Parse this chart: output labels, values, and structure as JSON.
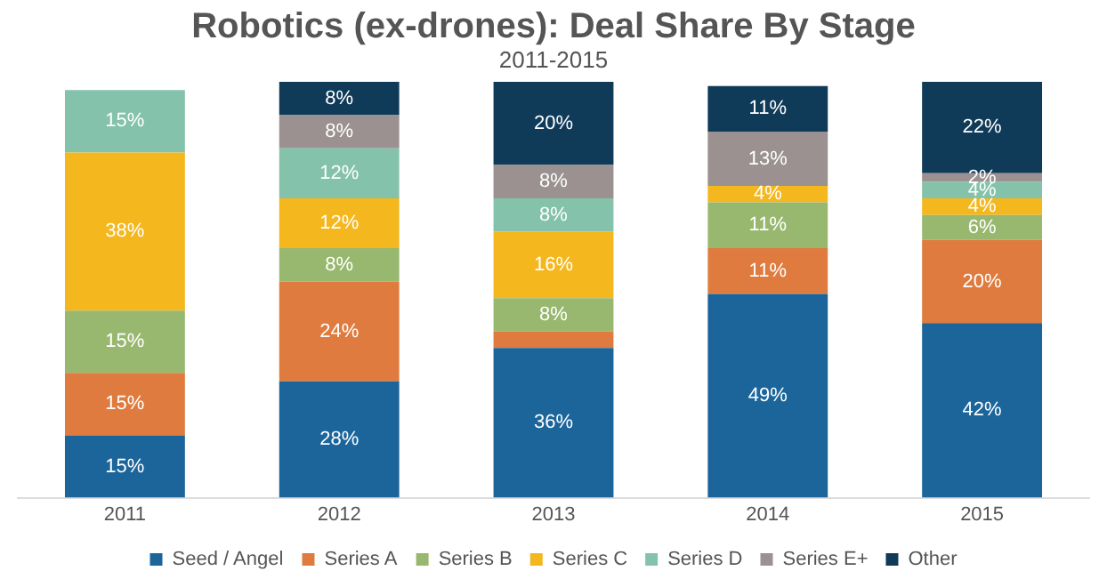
{
  "chart_data": {
    "type": "bar",
    "title": "Robotics (ex-drones): Deal Share By Stage",
    "subtitle": "2011-2015",
    "categories": [
      "2011",
      "2012",
      "2013",
      "2014",
      "2015"
    ],
    "stacked": true,
    "legend": "bottom",
    "grid": false,
    "series": [
      {
        "name": "Seed / Angel",
        "color": "#1b659b",
        "values": [
          15,
          28,
          36,
          49,
          42
        ],
        "value_labels": [
          "15%",
          "28%",
          "36%",
          "49%",
          "42%"
        ]
      },
      {
        "name": "Series A",
        "color": "#df7b3e",
        "values": [
          15,
          24,
          4,
          11,
          20
        ],
        "value_labels": [
          "15%",
          "24%",
          null,
          "11%",
          "20%"
        ]
      },
      {
        "name": "Series B",
        "color": "#98b86f",
        "values": [
          15,
          8,
          8,
          11,
          6
        ],
        "value_labels": [
          "15%",
          "8%",
          "8%",
          "11%",
          "6%"
        ]
      },
      {
        "name": "Series C",
        "color": "#f4b71d",
        "values": [
          38,
          12,
          16,
          4,
          4
        ],
        "value_labels": [
          "38%",
          "12%",
          "16%",
          "4%",
          "4%"
        ]
      },
      {
        "name": "Series D",
        "color": "#84c2ab",
        "values": [
          15,
          12,
          8,
          null,
          4
        ],
        "value_labels": [
          "15%",
          "12%",
          "8%",
          null,
          "4%"
        ]
      },
      {
        "name": "Series E+",
        "color": "#9a9190",
        "values": [
          null,
          8,
          8,
          13,
          2
        ],
        "value_labels": [
          null,
          "8%",
          "8%",
          "13%",
          "2%"
        ]
      },
      {
        "name": "Other",
        "color": "#0f3a58",
        "values": [
          null,
          8,
          20,
          11,
          22
        ],
        "value_labels": [
          null,
          "8%",
          "20%",
          "11%",
          "22%"
        ]
      }
    ]
  }
}
